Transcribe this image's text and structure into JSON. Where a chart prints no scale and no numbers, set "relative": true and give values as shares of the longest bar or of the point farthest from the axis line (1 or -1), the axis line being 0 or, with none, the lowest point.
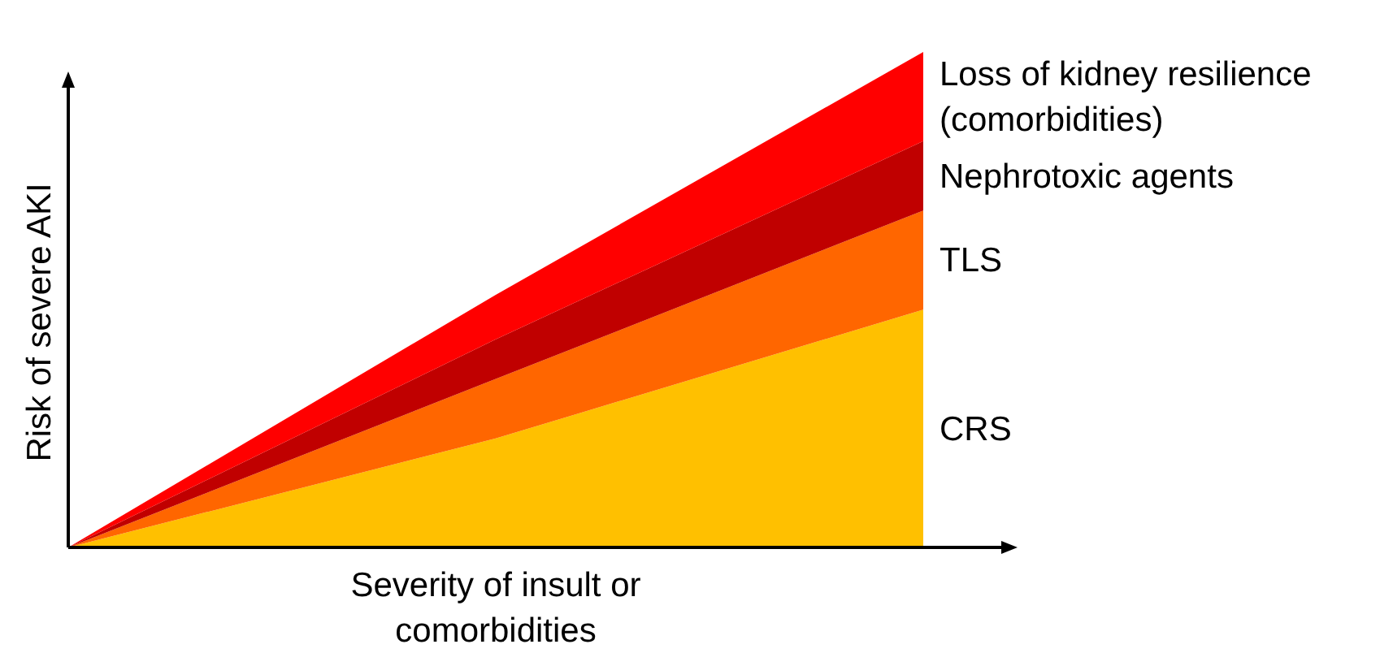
{
  "chart_data": {
    "type": "area",
    "stacked": true,
    "relative": true,
    "xlabel": "Severity of insult or comorbidities",
    "ylabel": "Risk of severe AKI",
    "categories": [
      null,
      null,
      null
    ],
    "series": [
      {
        "name": "CRS",
        "color": "#ffc000",
        "values": [
          0,
          0.22,
          0.48
        ]
      },
      {
        "name": "TLS",
        "color": "#ff6600",
        "values": [
          0,
          0.12,
          0.2
        ]
      },
      {
        "name": "Nephrotoxic agents",
        "color": "#c00000",
        "values": [
          0,
          0.08,
          0.14
        ]
      },
      {
        "name": "Loss of kidney resilience (comorbidities)",
        "color": "#ff0000",
        "values": [
          0,
          0.09,
          0.18
        ]
      }
    ]
  }
}
